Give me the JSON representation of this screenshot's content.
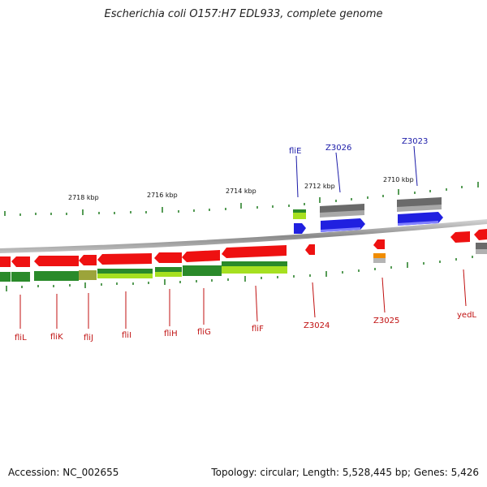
{
  "title": "Escherichia coli O157:H7 EDL933, complete genome",
  "footer": {
    "accession": "Accession: NC_002655",
    "stats": "Topology: circular; Length: 5,528,445 bp; Genes: 5,426"
  },
  "colors": {
    "forward_cds": "#2020e0",
    "forward_other": "#707070",
    "reverse_cds": "#ee1111",
    "reverse_other": "#707070",
    "label_forward": "#1a1aa8",
    "label_reverse": "#c01010",
    "dark_green": "#2a8a2a",
    "light_green": "#a6e020",
    "orange": "#f08c00",
    "tick": "#1f7a1f"
  },
  "scale_labels": [
    "2718 kbp",
    "2716 kbp",
    "2714 kbp",
    "2712 kbp",
    "2710 kbp"
  ],
  "labels_forward": [
    "fliE",
    "Z3026",
    "Z3023"
  ],
  "labels_reverse": [
    "fliL",
    "fliK",
    "fliJ",
    "fliI",
    "fliH",
    "fliG",
    "fliF",
    "Z3024",
    "Z3025",
    "yedL"
  ]
}
